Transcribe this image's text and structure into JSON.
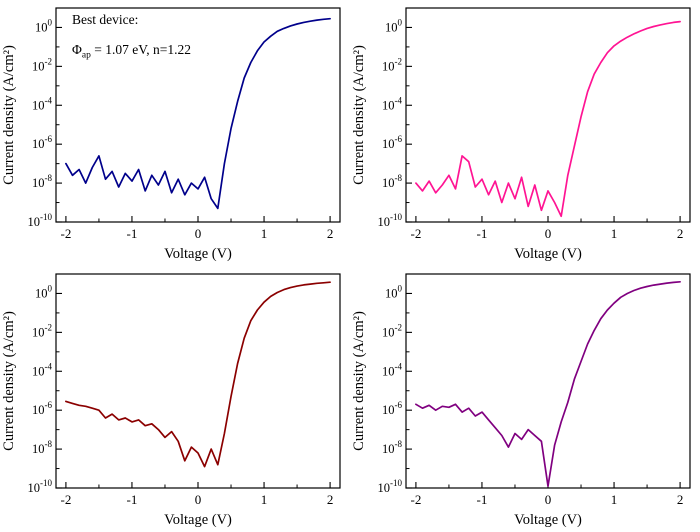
{
  "figure": {
    "background": "#ffffff"
  },
  "annotation": {
    "line1": "Best device:",
    "phi": "Φ",
    "phi_sub": "ap",
    "rest": " = 1.07 eV, n=1.22"
  },
  "chart_data": {
    "type": "line",
    "layout": "2x2-grid",
    "title": "",
    "xlabel": "Voltage (V)",
    "ylabel": "Current density (A/cm²)",
    "y_scale": "log",
    "xlim": [
      -2.15,
      2.15
    ],
    "y_exp_min": -10,
    "y_exp_max": 1,
    "x_major_ticks": [
      -2,
      -1,
      0,
      1,
      2
    ],
    "x_minor_ticks": [
      -1.5,
      -0.5,
      0.5,
      1.5
    ],
    "y_major_exponents": [
      -10,
      -8,
      -6,
      -4,
      -2,
      0
    ],
    "y_minor_exponents": [
      -9,
      -7,
      -5,
      -3,
      -1
    ],
    "x_start": -2,
    "x_step": 0.1,
    "grid": false,
    "legend": false,
    "panels": [
      {
        "name": "top-left",
        "color": "#00008B",
        "annotation": "Best device: Φap = 1.07 eV, n=1.22",
        "logJ": [
          -7.0,
          -7.6,
          -7.3,
          -8.0,
          -7.2,
          -6.6,
          -7.8,
          -7.4,
          -8.2,
          -7.5,
          -7.9,
          -7.3,
          -8.4,
          -7.6,
          -8.1,
          -7.4,
          -8.5,
          -7.8,
          -8.6,
          -8.0,
          -8.3,
          -7.7,
          -8.8,
          -9.3,
          -7.0,
          -5.2,
          -3.8,
          -2.6,
          -1.8,
          -1.2,
          -0.75,
          -0.45,
          -0.2,
          -0.05,
          0.08,
          0.18,
          0.26,
          0.32,
          0.38,
          0.42,
          0.45
        ]
      },
      {
        "name": "top-right",
        "color": "#FF1493",
        "logJ": [
          -8.0,
          -8.4,
          -7.9,
          -8.5,
          -8.1,
          -7.6,
          -8.3,
          -6.6,
          -6.9,
          -8.2,
          -7.8,
          -8.6,
          -7.9,
          -9.0,
          -8.0,
          -8.8,
          -7.7,
          -9.2,
          -8.1,
          -9.4,
          -8.4,
          -9.0,
          -9.7,
          -7.6,
          -6.1,
          -4.6,
          -3.3,
          -2.4,
          -1.8,
          -1.3,
          -0.95,
          -0.7,
          -0.5,
          -0.33,
          -0.18,
          -0.05,
          0.05,
          0.13,
          0.2,
          0.26,
          0.3
        ]
      },
      {
        "name": "bottom-left",
        "color": "#8B0000",
        "logJ": [
          -5.55,
          -5.65,
          -5.75,
          -5.8,
          -5.9,
          -6.0,
          -6.4,
          -6.2,
          -6.5,
          -6.4,
          -6.6,
          -6.5,
          -6.8,
          -6.7,
          -7.0,
          -7.4,
          -7.1,
          -7.6,
          -8.6,
          -7.9,
          -8.2,
          -8.9,
          -8.0,
          -8.8,
          -7.2,
          -5.3,
          -3.6,
          -2.3,
          -1.4,
          -0.85,
          -0.45,
          -0.15,
          0.05,
          0.2,
          0.3,
          0.38,
          0.44,
          0.48,
          0.52,
          0.55,
          0.58
        ]
      },
      {
        "name": "bottom-right",
        "color": "#800080",
        "logJ": [
          -5.7,
          -5.9,
          -5.75,
          -6.0,
          -5.8,
          -5.85,
          -5.7,
          -6.1,
          -5.9,
          -6.3,
          -6.1,
          -6.5,
          -6.9,
          -7.3,
          -7.9,
          -7.2,
          -7.5,
          -7.0,
          -7.3,
          -7.6,
          -9.9,
          -7.8,
          -6.6,
          -5.6,
          -4.4,
          -3.5,
          -2.6,
          -1.9,
          -1.3,
          -0.85,
          -0.5,
          -0.2,
          0.0,
          0.15,
          0.27,
          0.36,
          0.43,
          0.48,
          0.53,
          0.57,
          0.6
        ]
      }
    ]
  }
}
